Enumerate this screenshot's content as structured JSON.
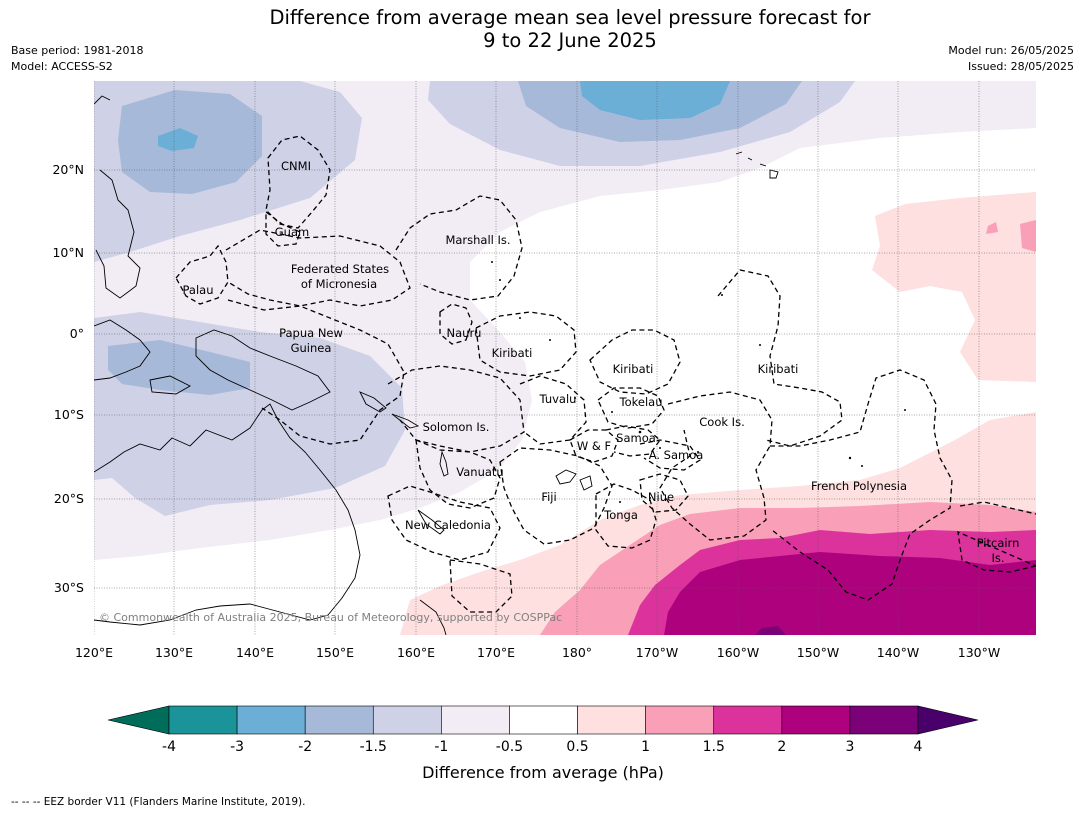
{
  "title": {
    "line1": "Difference from average mean sea level pressure forecast for",
    "line2": "9 to 22 June 2025"
  },
  "meta": {
    "base_period": "Base period: 1981-2018",
    "model": "Model: ACCESS-S2",
    "model_run": "Model run: 26/05/2025",
    "issued": "Issued: 28/05/2025"
  },
  "axes": {
    "lon_labels": [
      "120°E",
      "130°E",
      "140°E",
      "150°E",
      "160°E",
      "170°E",
      "180°",
      "170°W",
      "160°W",
      "150°W",
      "140°W",
      "130°W"
    ],
    "lat_labels": [
      "20°N",
      "10°N",
      "0°",
      "10°S",
      "20°S",
      "30°S"
    ]
  },
  "regions": [
    {
      "name": "CNMI"
    },
    {
      "name": "Guam"
    },
    {
      "name": "Marshall Is."
    },
    {
      "name": "Federated States"
    },
    {
      "name": "of Micronesia"
    },
    {
      "name": "Palau"
    },
    {
      "name": "Papua New"
    },
    {
      "name": "Guinea"
    },
    {
      "name": "Nauru"
    },
    {
      "name": "Kiribati"
    },
    {
      "name": "Kiribati"
    },
    {
      "name": "Kiribati"
    },
    {
      "name": "Tuvalu"
    },
    {
      "name": "Tokelau"
    },
    {
      "name": "Cook Is."
    },
    {
      "name": "Solomon Is."
    },
    {
      "name": "W & F"
    },
    {
      "name": "Samoa"
    },
    {
      "name": "A. Samoa"
    },
    {
      "name": "Vanuatu"
    },
    {
      "name": "Fiji"
    },
    {
      "name": "Niue"
    },
    {
      "name": "Tonga"
    },
    {
      "name": "French Polynesia"
    },
    {
      "name": "New Caledonia"
    },
    {
      "name": "Pitcairn"
    },
    {
      "name": "Is."
    }
  ],
  "copyright": "© Commonwealth of Australia 2025, Bureau of Meteorology, supported by COSPPac",
  "colorbar": {
    "label": "Difference from average (hPa)",
    "tick_labels": [
      "-4",
      "-3",
      "-2",
      "-1.5",
      "-1",
      "-0.5",
      "0.5",
      "1",
      "1.5",
      "2",
      "3",
      "4"
    ],
    "colors": [
      "#1a9399",
      "#6baed6",
      "#a6b9d8",
      "#cfd1e6",
      "#f2ecf5",
      "#ffffff",
      "#fde0df",
      "#f99fb8",
      "#db339b",
      "#ae017e",
      "#7a0177"
    ],
    "extend_low_color": "#006d5b",
    "extend_high_color": "#49006a"
  },
  "footer": "--  --  -- EEZ border V11 (Flanders Marine Institute, 2019)."
}
